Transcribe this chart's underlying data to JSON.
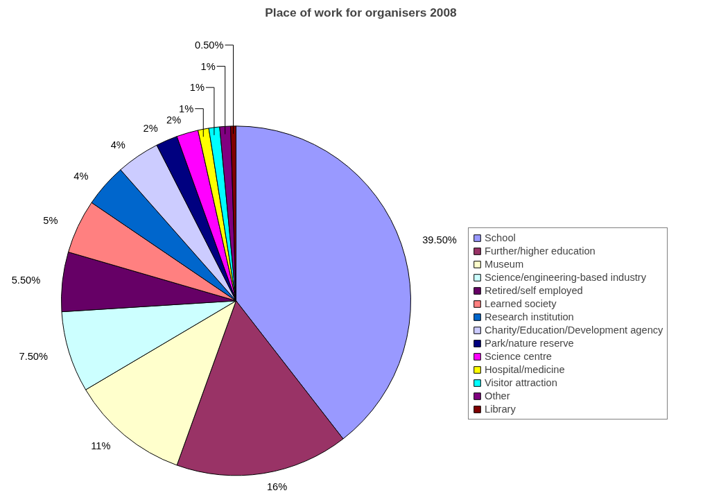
{
  "chart_data": {
    "type": "pie",
    "title": "Place of work for organisers 2008",
    "categories": [
      "School",
      "Further/higher education",
      "Museum",
      "Science/engineering-based industry",
      "Retired/self employed",
      "Learned society",
      "Research institution",
      "Charity/Education/Development agency",
      "Park/nature reserve",
      "Science centre",
      "Hospital/medicine",
      "Visitor attraction",
      "Other",
      "Library"
    ],
    "values": [
      39.5,
      16,
      11,
      7.5,
      5.5,
      5,
      4,
      4,
      2,
      2,
      1,
      1,
      1,
      0.5
    ],
    "value_labels": [
      "39.50%",
      "16%",
      "11%",
      "7.50%",
      "5.50%",
      "5%",
      "4%",
      "4%",
      "2%",
      "2%",
      "1%",
      "1%",
      "1%",
      "0.50%"
    ],
    "colors": [
      "#9999ff",
      "#993366",
      "#ffffcc",
      "#ccffff",
      "#660066",
      "#ff8080",
      "#0066cc",
      "#ccccff",
      "#000080",
      "#ff00ff",
      "#ffff00",
      "#00ffff",
      "#800080",
      "#800000"
    ],
    "legend": "right"
  }
}
